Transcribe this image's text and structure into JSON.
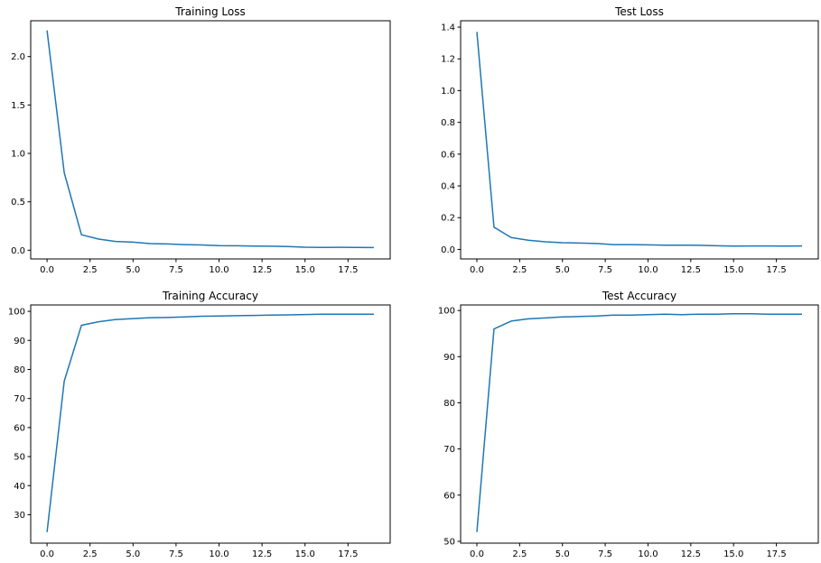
{
  "chart_data": [
    {
      "type": "line",
      "title": "Training Loss",
      "xlabel": "",
      "ylabel": "",
      "xlim": [
        -0.95,
        19.95
      ],
      "ylim": [
        -0.09,
        2.37
      ],
      "xticks": [
        0,
        2.5,
        5,
        7.5,
        10,
        12.5,
        15,
        17.5
      ],
      "xtick_labels": [
        "0.0",
        "2.5",
        "5.0",
        "7.5",
        "10.0",
        "12.5",
        "15.0",
        "17.5"
      ],
      "yticks": [
        0,
        0.5,
        1,
        1.5,
        2
      ],
      "ytick_labels": [
        "0.0",
        "0.5",
        "1.0",
        "1.5",
        "2.0"
      ],
      "grid": false,
      "color": "#1f77b4",
      "x": [
        0,
        1,
        2,
        3,
        4,
        5,
        6,
        7,
        8,
        9,
        10,
        11,
        12,
        13,
        14,
        15,
        16,
        17,
        18,
        19
      ],
      "series": [
        {
          "values": [
            2.27,
            0.8,
            0.16,
            0.115,
            0.09,
            0.083,
            0.068,
            0.065,
            0.058,
            0.054,
            0.048,
            0.046,
            0.043,
            0.042,
            0.038,
            0.031,
            0.029,
            0.03,
            0.029,
            0.028
          ]
        }
      ]
    },
    {
      "type": "line",
      "title": "Test Loss",
      "xlabel": "",
      "ylabel": "",
      "xlim": [
        -0.95,
        19.95
      ],
      "ylim": [
        -0.06,
        1.44
      ],
      "xticks": [
        0,
        2.5,
        5,
        7.5,
        10,
        12.5,
        15,
        17.5
      ],
      "xtick_labels": [
        "0.0",
        "2.5",
        "5.0",
        "7.5",
        "10.0",
        "12.5",
        "15.0",
        "17.5"
      ],
      "yticks": [
        0,
        0.2,
        0.4,
        0.6,
        0.8,
        1.0,
        1.2,
        1.4
      ],
      "ytick_labels": [
        "0.0",
        "0.2",
        "0.4",
        "0.6",
        "0.8",
        "1.0",
        "1.2",
        "1.4"
      ],
      "grid": false,
      "color": "#1f77b4",
      "x": [
        0,
        1,
        2,
        3,
        4,
        5,
        6,
        7,
        8,
        9,
        10,
        11,
        12,
        13,
        14,
        15,
        16,
        17,
        18,
        19
      ],
      "series": [
        {
          "values": [
            1.37,
            0.14,
            0.075,
            0.058,
            0.048,
            0.042,
            0.04,
            0.037,
            0.03,
            0.03,
            0.029,
            0.027,
            0.027,
            0.026,
            0.023,
            0.021,
            0.022,
            0.022,
            0.021,
            0.022
          ]
        }
      ]
    },
    {
      "type": "line",
      "title": "Training Accuracy",
      "xlabel": "",
      "ylabel": "",
      "xlim": [
        -0.95,
        19.95
      ],
      "ylim": [
        20.2,
        102.2
      ],
      "xticks": [
        0,
        2.5,
        5,
        7.5,
        10,
        12.5,
        15,
        17.5
      ],
      "xtick_labels": [
        "0.0",
        "2.5",
        "5.0",
        "7.5",
        "10.0",
        "12.5",
        "15.0",
        "17.5"
      ],
      "yticks": [
        30,
        40,
        50,
        60,
        70,
        80,
        90,
        100
      ],
      "ytick_labels": [
        "30",
        "40",
        "50",
        "60",
        "70",
        "80",
        "90",
        "100"
      ],
      "grid": false,
      "color": "#1f77b4",
      "x": [
        0,
        1,
        2,
        3,
        4,
        5,
        6,
        7,
        8,
        9,
        10,
        11,
        12,
        13,
        14,
        15,
        16,
        17,
        18,
        19
      ],
      "series": [
        {
          "values": [
            24.0,
            76.0,
            95.2,
            96.4,
            97.2,
            97.5,
            97.8,
            97.9,
            98.1,
            98.3,
            98.4,
            98.5,
            98.6,
            98.7,
            98.8,
            98.9,
            99.0,
            99.0,
            99.0,
            99.0
          ]
        }
      ]
    },
    {
      "type": "line",
      "title": "Test Accuracy",
      "xlabel": "",
      "ylabel": "",
      "xlim": [
        -0.95,
        19.95
      ],
      "ylim": [
        49.6,
        101.2
      ],
      "xticks": [
        0,
        2.5,
        5,
        7.5,
        10,
        12.5,
        15,
        17.5
      ],
      "xtick_labels": [
        "0.0",
        "2.5",
        "5.0",
        "7.5",
        "10.0",
        "12.5",
        "15.0",
        "17.5"
      ],
      "yticks": [
        50,
        60,
        70,
        80,
        90,
        100
      ],
      "ytick_labels": [
        "50",
        "60",
        "70",
        "80",
        "90",
        "100"
      ],
      "grid": false,
      "color": "#1f77b4",
      "x": [
        0,
        1,
        2,
        3,
        4,
        5,
        6,
        7,
        8,
        9,
        10,
        11,
        12,
        13,
        14,
        15,
        16,
        17,
        18,
        19
      ],
      "series": [
        {
          "values": [
            52.0,
            96.0,
            97.7,
            98.2,
            98.4,
            98.6,
            98.7,
            98.8,
            99.0,
            99.0,
            99.1,
            99.2,
            99.1,
            99.2,
            99.2,
            99.3,
            99.3,
            99.2,
            99.2,
            99.2
          ]
        }
      ]
    }
  ]
}
